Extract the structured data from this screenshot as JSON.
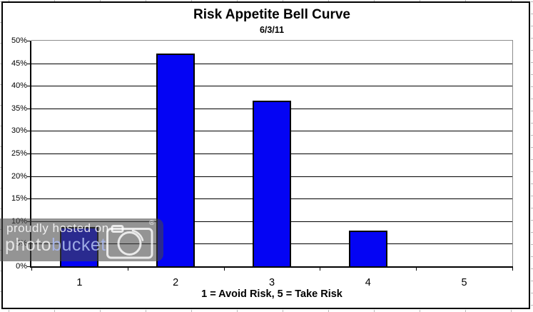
{
  "chart_data": {
    "type": "bar",
    "title": "Risk Appetite Bell Curve",
    "subtitle": "6/3/11",
    "categories": [
      "1",
      "2",
      "3",
      "4",
      "5"
    ],
    "values": [
      8.7,
      47.1,
      36.7,
      7.9,
      0
    ],
    "xlabel": "1 = Avoid Risk, 5 = Take Risk",
    "ylabel": "",
    "ylim": [
      0,
      50
    ],
    "ytick_step": 5,
    "yticks": [
      "50%",
      "45%",
      "40%",
      "35%",
      "30%",
      "25%",
      "20%",
      "15%",
      "10%",
      "5%",
      "0%"
    ],
    "grid": true,
    "legend": false,
    "bar_color": "#0404f4",
    "bar_border_color": "#000000",
    "gridline_color": "#000000",
    "axis_color": "#000000",
    "plot_border_color": "#8c8c8c"
  },
  "watermark": {
    "line1": "proudly hosted on",
    "brand_prefix": "photo",
    "brand_suffix": "bucket",
    "registered": "®",
    "icon": "camera-icon",
    "overlay_color": "rgba(70,70,70,0.58)",
    "text_color": "#ffffff",
    "brand_suffix_color": "#a8b6eb"
  }
}
